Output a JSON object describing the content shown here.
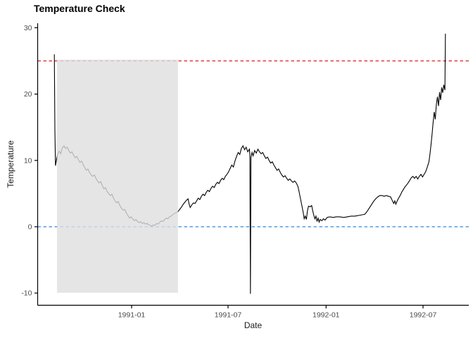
{
  "chart_data": {
    "type": "line",
    "title": "Temperature Check",
    "xlabel": "Date",
    "ylabel": "Temperature",
    "grid": false,
    "legend": "none",
    "background": "#FFFFFF",
    "x_axis": {
      "ticks": [
        {
          "value": "1991-01-01",
          "label": "1991-01"
        },
        {
          "value": "1991-07-01",
          "label": "1991-07"
        },
        {
          "value": "1992-01-01",
          "label": "1992-01"
        },
        {
          "value": "1992-07-01",
          "label": "1992-07"
        }
      ],
      "range": [
        "1990-08-05",
        "1992-08-20"
      ]
    },
    "y_axis": {
      "ticks": [
        {
          "value": 30,
          "label": "30"
        },
        {
          "value": 20,
          "label": "20"
        },
        {
          "value": 10,
          "label": "10"
        },
        {
          "value": 0,
          "label": "0"
        },
        {
          "value": -10,
          "label": "-10"
        }
      ],
      "range": [
        -10.5,
        30.5
      ]
    },
    "colors": {
      "series": "#000000",
      "axis_text": "#4D4D4D",
      "axis_line": "#000000",
      "red_threshold": "#DE2121",
      "blue_threshold": "#2E86E8",
      "region_fill": "#DEDEDE"
    },
    "annotations": {
      "hlines": [
        {
          "name": "threshold-line-25",
          "y": 25,
          "color": "#DE2121",
          "style": "dashed"
        },
        {
          "name": "threshold-line-0",
          "y": 0,
          "color": "#2E86E8",
          "style": "dashed"
        }
      ],
      "shaded_region": {
        "x_start": "1990-08-14",
        "x_end": "1991-03-29",
        "y_min": -10,
        "y_max": 25,
        "fill": "#DEDEDE",
        "opacity": 0.8
      }
    },
    "series": [
      {
        "name": "temperature",
        "color": "#000000",
        "points": [
          [
            "1990-08-09",
            26.0
          ],
          [
            "1990-08-10",
            14.5
          ],
          [
            "1990-08-11",
            9.2
          ],
          [
            "1990-08-13",
            10.1
          ],
          [
            "1990-08-15",
            10.9
          ],
          [
            "1990-08-18",
            11.4
          ],
          [
            "1990-08-21",
            11.0
          ],
          [
            "1990-08-24",
            11.9
          ],
          [
            "1990-08-27",
            12.2
          ],
          [
            "1990-08-30",
            11.8
          ],
          [
            "1990-09-02",
            12.0
          ],
          [
            "1990-09-05",
            11.5
          ],
          [
            "1990-09-08",
            11.1
          ],
          [
            "1990-09-11",
            11.3
          ],
          [
            "1990-09-14",
            10.8
          ],
          [
            "1990-09-17",
            10.4
          ],
          [
            "1990-09-20",
            10.6
          ],
          [
            "1990-09-23",
            10.1
          ],
          [
            "1990-09-26",
            9.7
          ],
          [
            "1990-09-29",
            9.9
          ],
          [
            "1990-10-02",
            9.4
          ],
          [
            "1990-10-05",
            8.9
          ],
          [
            "1990-10-08",
            8.5
          ],
          [
            "1990-10-11",
            8.7
          ],
          [
            "1990-10-14",
            8.2
          ],
          [
            "1990-10-17",
            7.8
          ],
          [
            "1990-10-20",
            7.6
          ],
          [
            "1990-10-23",
            7.8
          ],
          [
            "1990-10-26",
            7.3
          ],
          [
            "1990-10-29",
            6.9
          ],
          [
            "1990-11-01",
            6.6
          ],
          [
            "1990-11-04",
            6.8
          ],
          [
            "1990-11-07",
            6.2
          ],
          [
            "1990-11-10",
            5.7
          ],
          [
            "1990-11-13",
            5.9
          ],
          [
            "1990-11-16",
            5.3
          ],
          [
            "1990-11-19",
            5.0
          ],
          [
            "1990-11-22",
            4.7
          ],
          [
            "1990-11-25",
            4.9
          ],
          [
            "1990-11-28",
            4.3
          ],
          [
            "1990-12-01",
            3.9
          ],
          [
            "1990-12-04",
            3.6
          ],
          [
            "1990-12-07",
            3.8
          ],
          [
            "1990-12-10",
            3.2
          ],
          [
            "1990-12-13",
            2.8
          ],
          [
            "1990-12-16",
            2.5
          ],
          [
            "1990-12-19",
            2.6
          ],
          [
            "1990-12-22",
            2.1
          ],
          [
            "1990-12-25",
            1.7
          ],
          [
            "1990-12-28",
            1.3
          ],
          [
            "1990-12-31",
            1.5
          ],
          [
            "1991-01-03",
            1.2
          ],
          [
            "1991-01-06",
            0.9
          ],
          [
            "1991-01-09",
            1.1
          ],
          [
            "1991-01-12",
            0.8
          ],
          [
            "1991-01-15",
            0.6
          ],
          [
            "1991-01-18",
            0.8
          ],
          [
            "1991-01-21",
            0.5
          ],
          [
            "1991-01-24",
            0.6
          ],
          [
            "1991-01-27",
            0.4
          ],
          [
            "1991-01-30",
            0.5
          ],
          [
            "1991-02-02",
            0.3
          ],
          [
            "1991-02-05",
            0.2
          ],
          [
            "1991-02-08",
            0.1
          ],
          [
            "1991-02-11",
            0.3
          ],
          [
            "1991-02-14",
            0.2
          ],
          [
            "1991-02-17",
            0.5
          ],
          [
            "1991-02-20",
            0.4
          ],
          [
            "1991-02-23",
            0.7
          ],
          [
            "1991-02-26",
            0.9
          ],
          [
            "1991-03-01",
            0.8
          ],
          [
            "1991-03-04",
            1.1
          ],
          [
            "1991-03-07",
            1.3
          ],
          [
            "1991-03-10",
            1.2
          ],
          [
            "1991-03-13",
            1.5
          ],
          [
            "1991-03-16",
            1.6
          ],
          [
            "1991-03-19",
            1.8
          ],
          [
            "1991-03-22",
            2.0
          ],
          [
            "1991-03-25",
            2.1
          ],
          [
            "1991-03-29",
            2.3
          ],
          [
            "1991-04-02",
            2.7
          ],
          [
            "1991-04-05",
            3.0
          ],
          [
            "1991-04-08",
            3.4
          ],
          [
            "1991-04-11",
            3.7
          ],
          [
            "1991-04-14",
            4.0
          ],
          [
            "1991-04-17",
            4.2
          ],
          [
            "1991-04-19",
            3.4
          ],
          [
            "1991-04-21",
            2.9
          ],
          [
            "1991-04-24",
            3.3
          ],
          [
            "1991-04-27",
            3.6
          ],
          [
            "1991-04-30",
            3.5
          ],
          [
            "1991-05-03",
            3.9
          ],
          [
            "1991-05-06",
            4.3
          ],
          [
            "1991-05-09",
            4.1
          ],
          [
            "1991-05-12",
            4.6
          ],
          [
            "1991-05-15",
            4.9
          ],
          [
            "1991-05-18",
            4.7
          ],
          [
            "1991-05-21",
            5.2
          ],
          [
            "1991-05-24",
            5.5
          ],
          [
            "1991-05-27",
            5.3
          ],
          [
            "1991-05-30",
            5.8
          ],
          [
            "1991-06-02",
            6.1
          ],
          [
            "1991-06-05",
            5.9
          ],
          [
            "1991-06-08",
            6.4
          ],
          [
            "1991-06-11",
            6.7
          ],
          [
            "1991-06-14",
            6.5
          ],
          [
            "1991-06-17",
            7.0
          ],
          [
            "1991-06-20",
            7.3
          ],
          [
            "1991-06-23",
            7.1
          ],
          [
            "1991-06-26",
            7.6
          ],
          [
            "1991-06-29",
            7.9
          ],
          [
            "1991-07-02",
            8.3
          ],
          [
            "1991-07-05",
            8.8
          ],
          [
            "1991-07-08",
            9.3
          ],
          [
            "1991-07-11",
            9.0
          ],
          [
            "1991-07-14",
            9.9
          ],
          [
            "1991-07-17",
            10.6
          ],
          [
            "1991-07-20",
            11.2
          ],
          [
            "1991-07-23",
            10.9
          ],
          [
            "1991-07-26",
            11.8
          ],
          [
            "1991-07-29",
            12.2
          ],
          [
            "1991-08-01",
            11.6
          ],
          [
            "1991-08-04",
            12.0
          ],
          [
            "1991-08-07",
            11.3
          ],
          [
            "1991-08-10",
            11.7
          ],
          [
            "1991-08-11",
            10.9
          ],
          [
            "1991-08-12",
            -10.1
          ],
          [
            "1991-08-13",
            10.4
          ],
          [
            "1991-08-15",
            11.2
          ],
          [
            "1991-08-17",
            10.7
          ],
          [
            "1991-08-20",
            11.5
          ],
          [
            "1991-08-23",
            11.1
          ],
          [
            "1991-08-26",
            11.7
          ],
          [
            "1991-08-29",
            11.3
          ],
          [
            "1991-09-01",
            11.0
          ],
          [
            "1991-09-04",
            11.2
          ],
          [
            "1991-09-07",
            10.7
          ],
          [
            "1991-09-10",
            10.3
          ],
          [
            "1991-09-13",
            10.5
          ],
          [
            "1991-09-16",
            10.0
          ],
          [
            "1991-09-19",
            9.6
          ],
          [
            "1991-09-22",
            9.8
          ],
          [
            "1991-09-25",
            9.3
          ],
          [
            "1991-09-28",
            8.9
          ],
          [
            "1991-10-01",
            8.5
          ],
          [
            "1991-10-04",
            8.7
          ],
          [
            "1991-10-07",
            8.2
          ],
          [
            "1991-10-10",
            7.8
          ],
          [
            "1991-10-13",
            7.5
          ],
          [
            "1991-10-16",
            7.7
          ],
          [
            "1991-10-19",
            7.3
          ],
          [
            "1991-10-22",
            7.0
          ],
          [
            "1991-10-25",
            7.2
          ],
          [
            "1991-10-28",
            6.9
          ],
          [
            "1991-10-31",
            6.7
          ],
          [
            "1991-11-03",
            6.9
          ],
          [
            "1991-11-06",
            6.6
          ],
          [
            "1991-11-09",
            6.1
          ],
          [
            "1991-11-11",
            5.4
          ],
          [
            "1991-11-13",
            4.6
          ],
          [
            "1991-11-15",
            3.8
          ],
          [
            "1991-11-17",
            3.0
          ],
          [
            "1991-11-19",
            2.2
          ],
          [
            "1991-11-21",
            1.2
          ],
          [
            "1991-11-23",
            1.6
          ],
          [
            "1991-11-25",
            1.1
          ],
          [
            "1991-11-27",
            2.4
          ],
          [
            "1991-11-29",
            3.1
          ],
          [
            "1991-12-02",
            3.0
          ],
          [
            "1991-12-05",
            3.2
          ],
          [
            "1991-12-07",
            2.4
          ],
          [
            "1991-12-09",
            1.7
          ],
          [
            "1991-12-11",
            1.2
          ],
          [
            "1991-12-13",
            1.6
          ],
          [
            "1991-12-15",
            0.8
          ],
          [
            "1991-12-17",
            1.3
          ],
          [
            "1991-12-19",
            0.7
          ],
          [
            "1991-12-21",
            1.1
          ],
          [
            "1991-12-24",
            0.9
          ],
          [
            "1991-12-27",
            1.2
          ],
          [
            "1991-12-30",
            1.0
          ],
          [
            "1992-01-03",
            1.4
          ],
          [
            "1992-01-08",
            1.5
          ],
          [
            "1992-01-14",
            1.4
          ],
          [
            "1992-01-20",
            1.5
          ],
          [
            "1992-01-27",
            1.5
          ],
          [
            "1992-02-03",
            1.4
          ],
          [
            "1992-02-10",
            1.5
          ],
          [
            "1992-02-17",
            1.6
          ],
          [
            "1992-02-24",
            1.6
          ],
          [
            "1992-03-02",
            1.7
          ],
          [
            "1992-03-09",
            1.8
          ],
          [
            "1992-03-14",
            1.9
          ],
          [
            "1992-03-18",
            2.3
          ],
          [
            "1992-03-22",
            2.8
          ],
          [
            "1992-03-26",
            3.3
          ],
          [
            "1992-03-30",
            3.8
          ],
          [
            "1992-04-03",
            4.2
          ],
          [
            "1992-04-07",
            4.5
          ],
          [
            "1992-04-11",
            4.7
          ],
          [
            "1992-04-15",
            4.7
          ],
          [
            "1992-04-19",
            4.6
          ],
          [
            "1992-04-23",
            4.7
          ],
          [
            "1992-04-27",
            4.6
          ],
          [
            "1992-05-01",
            4.5
          ],
          [
            "1992-05-04",
            4.0
          ],
          [
            "1992-05-07",
            3.5
          ],
          [
            "1992-05-09",
            3.9
          ],
          [
            "1992-05-11",
            3.4
          ],
          [
            "1992-05-13",
            3.8
          ],
          [
            "1992-05-16",
            4.3
          ],
          [
            "1992-05-19",
            4.7
          ],
          [
            "1992-05-22",
            5.2
          ],
          [
            "1992-05-25",
            5.6
          ],
          [
            "1992-05-28",
            6.0
          ],
          [
            "1992-05-31",
            6.3
          ],
          [
            "1992-06-03",
            6.6
          ],
          [
            "1992-06-06",
            7.0
          ],
          [
            "1992-06-09",
            7.4
          ],
          [
            "1992-06-12",
            7.6
          ],
          [
            "1992-06-15",
            7.3
          ],
          [
            "1992-06-18",
            7.6
          ],
          [
            "1992-06-21",
            7.2
          ],
          [
            "1992-06-24",
            7.6
          ],
          [
            "1992-06-27",
            7.9
          ],
          [
            "1992-06-30",
            7.5
          ],
          [
            "1992-07-03",
            7.9
          ],
          [
            "1992-07-06",
            8.3
          ],
          [
            "1992-07-09",
            9.0
          ],
          [
            "1992-07-12",
            9.8
          ],
          [
            "1992-07-14",
            11.0
          ],
          [
            "1992-07-16",
            12.4
          ],
          [
            "1992-07-18",
            14.0
          ],
          [
            "1992-07-20",
            15.8
          ],
          [
            "1992-07-22",
            17.3
          ],
          [
            "1992-07-24",
            16.2
          ],
          [
            "1992-07-26",
            18.4
          ],
          [
            "1992-07-28",
            19.6
          ],
          [
            "1992-07-30",
            18.2
          ],
          [
            "1992-08-01",
            20.3
          ],
          [
            "1992-08-03",
            19.1
          ],
          [
            "1992-08-05",
            21.0
          ],
          [
            "1992-08-07",
            20.2
          ],
          [
            "1992-08-09",
            21.4
          ],
          [
            "1992-08-11",
            20.6
          ],
          [
            "1992-08-12",
            29.1
          ]
        ]
      }
    ]
  }
}
